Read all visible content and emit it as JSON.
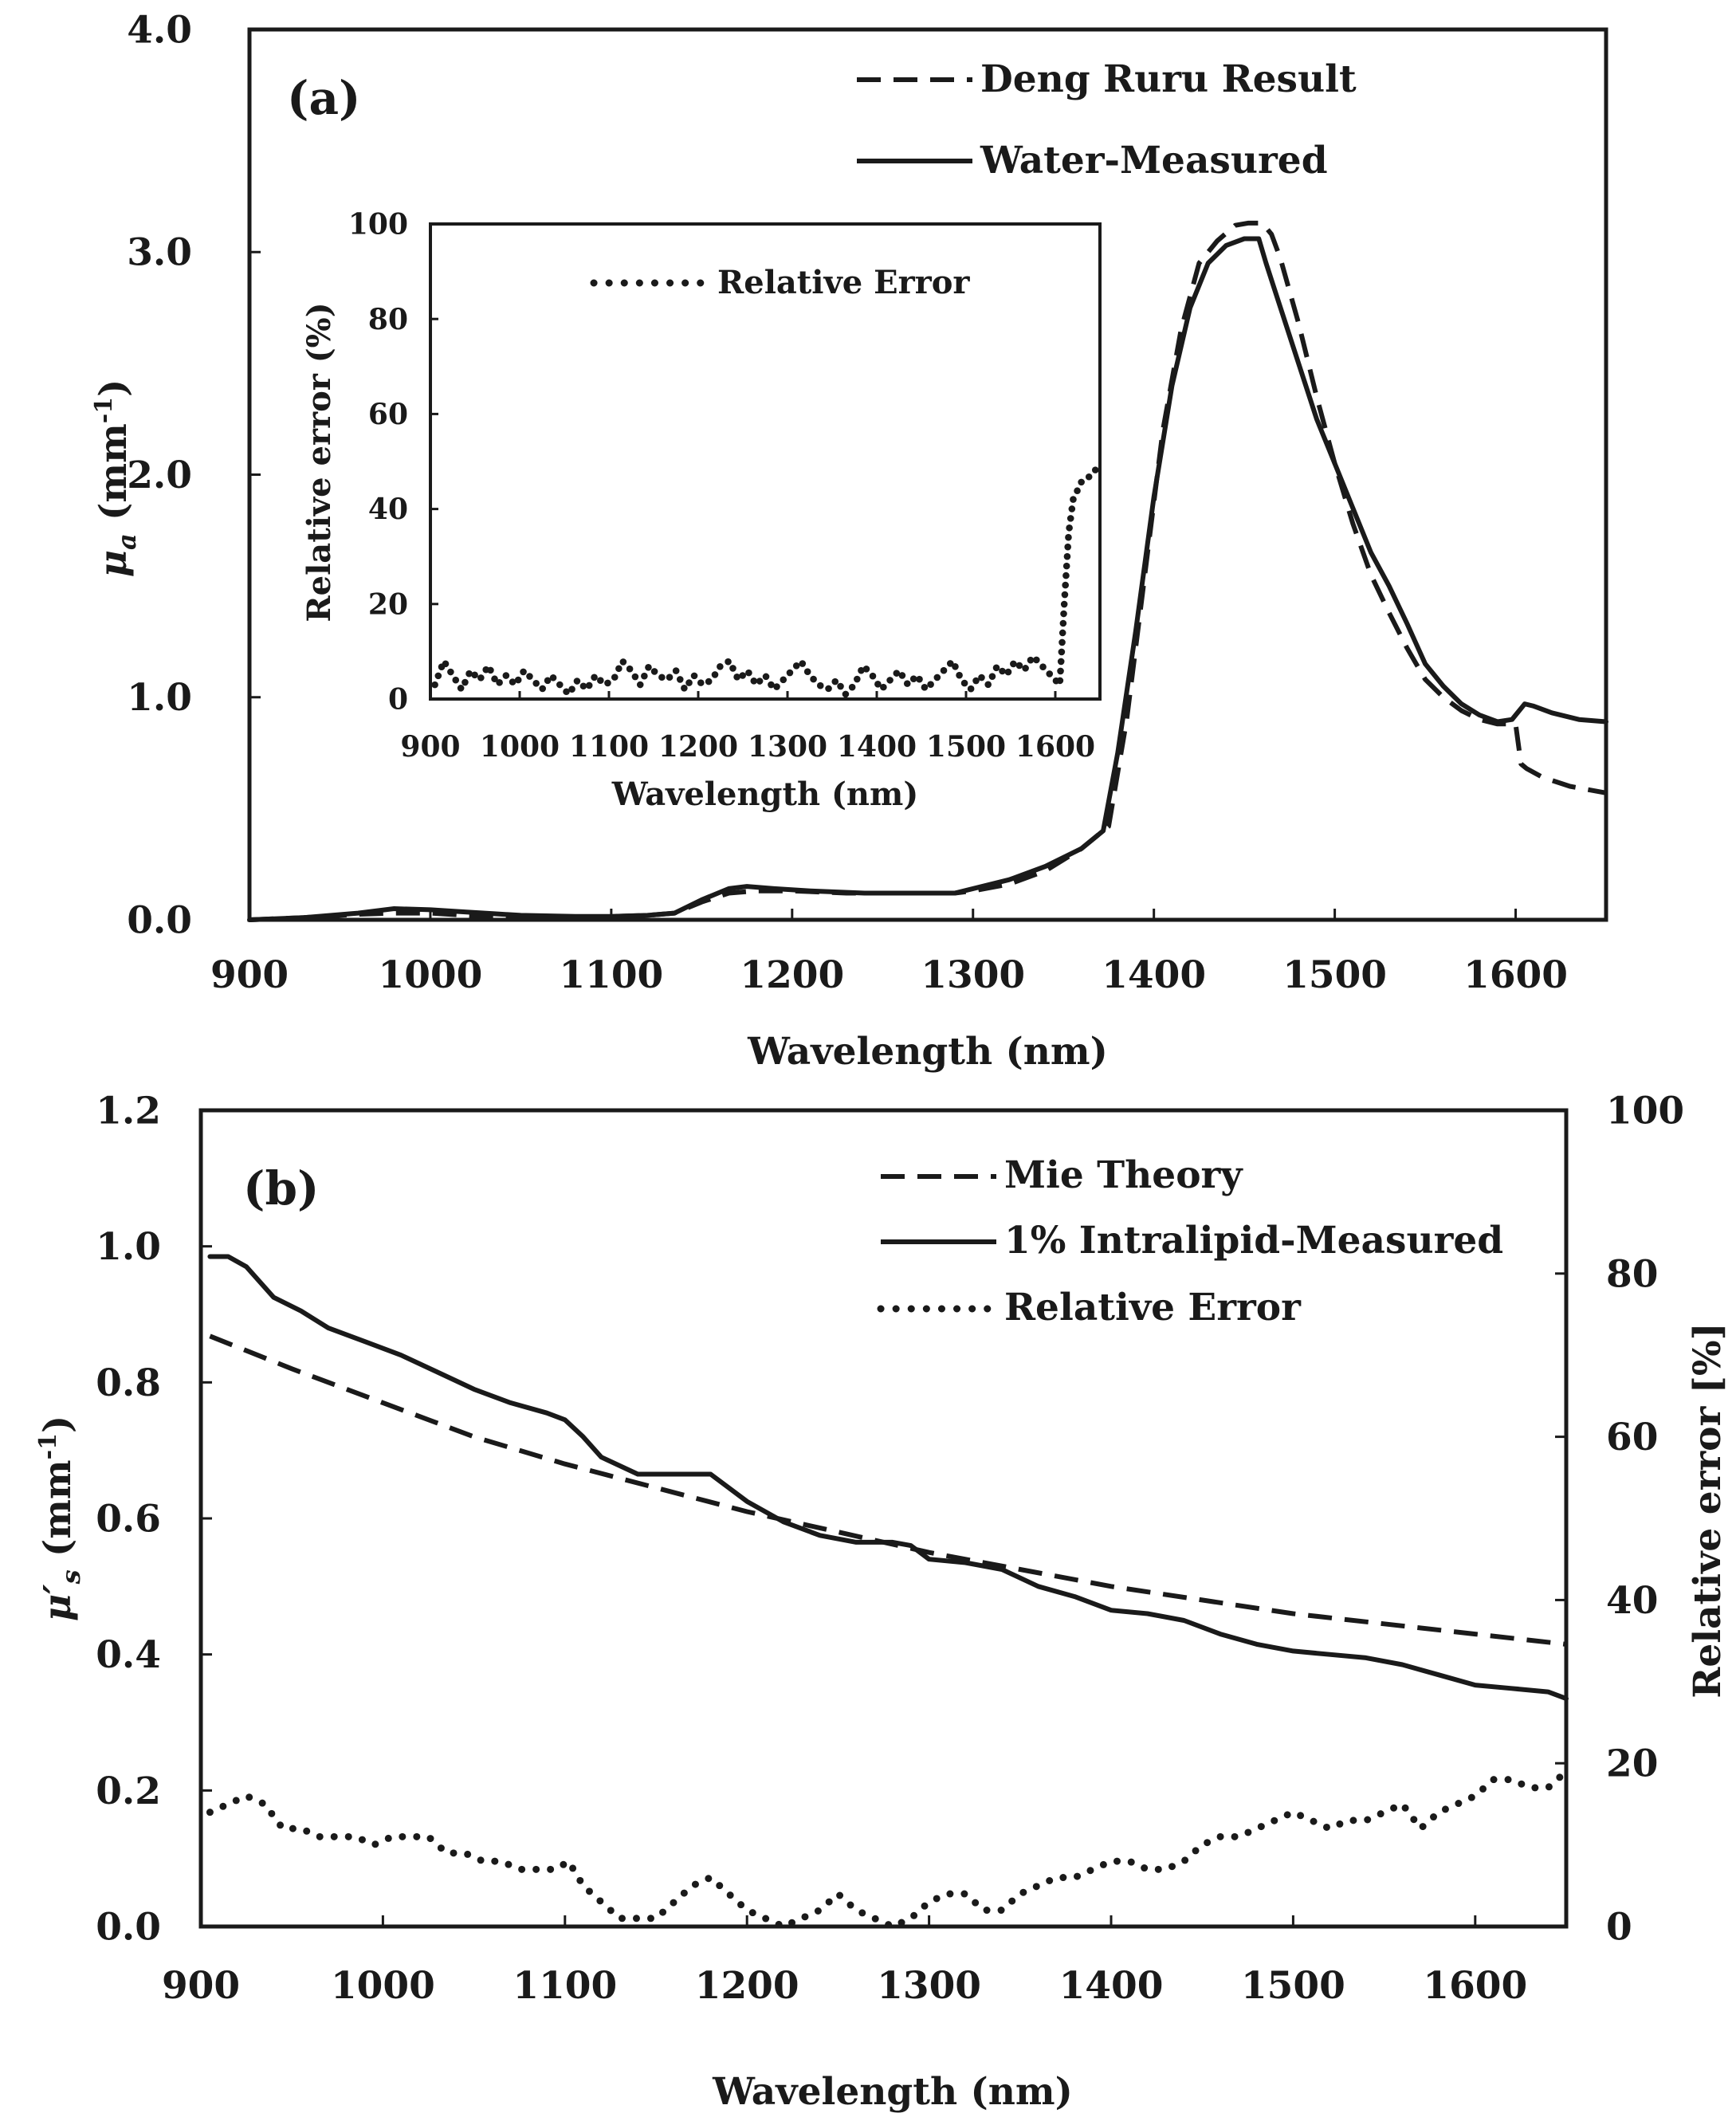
{
  "chart_data": [
    {
      "panel": "(a)",
      "type": "line",
      "xlabel": "Wavelength (nm)",
      "ylabel_main": "μ",
      "ylabel_sub": "a",
      "ylabel_unit": " (mm",
      "ylabel_exp": "-1",
      "ylabel_close": ")",
      "xlim": [
        900,
        1650
      ],
      "ylim": [
        0,
        4
      ],
      "xticks": [
        900,
        1000,
        1100,
        1200,
        1300,
        1400,
        1500,
        1600
      ],
      "yticks": [
        "0.0",
        "1.0",
        "2.0",
        "3.0",
        "4.0"
      ],
      "ytick_values": [
        0,
        1,
        2,
        3,
        4
      ],
      "series": [
        {
          "name": "Deng Ruru Result",
          "style": "dashed",
          "x": [
            900,
            930,
            960,
            980,
            1000,
            1020,
            1050,
            1080,
            1100,
            1120,
            1135,
            1150,
            1165,
            1180,
            1200,
            1230,
            1260,
            1290,
            1300,
            1320,
            1340,
            1360,
            1375,
            1385,
            1395,
            1405,
            1415,
            1425,
            1435,
            1445,
            1452,
            1460,
            1465,
            1470,
            1480,
            1490,
            1500,
            1510,
            1520,
            1530,
            1540,
            1550,
            1560,
            1570,
            1580,
            1590,
            1600,
            1603,
            1606,
            1615,
            1630,
            1650
          ],
          "values": [
            0.0,
            0.01,
            0.025,
            0.03,
            0.03,
            0.02,
            0.01,
            0.01,
            0.015,
            0.02,
            0.03,
            0.08,
            0.12,
            0.13,
            0.13,
            0.12,
            0.12,
            0.12,
            0.13,
            0.16,
            0.22,
            0.32,
            0.42,
            0.9,
            1.55,
            2.2,
            2.65,
            2.95,
            3.05,
            3.12,
            3.13,
            3.13,
            3.08,
            2.97,
            2.68,
            2.35,
            2.05,
            1.78,
            1.55,
            1.38,
            1.22,
            1.08,
            1.0,
            0.94,
            0.9,
            0.88,
            0.88,
            0.7,
            0.68,
            0.64,
            0.6,
            0.57
          ]
        },
        {
          "name": "Water-Measured",
          "style": "solid",
          "x": [
            900,
            930,
            960,
            980,
            1000,
            1020,
            1050,
            1080,
            1100,
            1120,
            1135,
            1150,
            1165,
            1175,
            1190,
            1210,
            1240,
            1260,
            1290,
            1300,
            1320,
            1340,
            1360,
            1372,
            1380,
            1390,
            1400,
            1410,
            1420,
            1430,
            1440,
            1450,
            1458,
            1462,
            1470,
            1480,
            1490,
            1500,
            1510,
            1520,
            1530,
            1540,
            1550,
            1560,
            1570,
            1580,
            1590,
            1598,
            1605,
            1610,
            1620,
            1635,
            1650
          ],
          "values": [
            0.0,
            0.01,
            0.03,
            0.05,
            0.045,
            0.035,
            0.02,
            0.015,
            0.015,
            0.02,
            0.03,
            0.09,
            0.14,
            0.15,
            0.14,
            0.13,
            0.12,
            0.12,
            0.12,
            0.14,
            0.18,
            0.24,
            0.32,
            0.4,
            0.75,
            1.3,
            1.9,
            2.4,
            2.75,
            2.95,
            3.03,
            3.06,
            3.06,
            2.95,
            2.75,
            2.5,
            2.25,
            2.05,
            1.85,
            1.65,
            1.5,
            1.33,
            1.15,
            1.05,
            0.97,
            0.92,
            0.89,
            0.9,
            0.97,
            0.96,
            0.93,
            0.9,
            0.89
          ]
        }
      ],
      "legend": [
        "Deng Ruru Result",
        "Water-Measured"
      ]
    },
    {
      "panel": "inset of (a)",
      "type": "scatter",
      "xlabel": "Wavelength (nm)",
      "ylabel": "Relative error (%)",
      "xlim": [
        900,
        1650
      ],
      "ylim": [
        0,
        100
      ],
      "xticks": [
        900,
        1000,
        1100,
        1200,
        1300,
        1400,
        1500,
        1600
      ],
      "yticks": [
        "0",
        "20",
        "40",
        "60",
        "80",
        "100"
      ],
      "ytick_values": [
        0,
        20,
        40,
        60,
        80,
        100
      ],
      "series": [
        {
          "name": "Relative Error",
          "style": "dotted",
          "x": [
            905,
            915,
            925,
            935,
            945,
            955,
            965,
            975,
            985,
            995,
            1005,
            1015,
            1025,
            1035,
            1045,
            1055,
            1065,
            1075,
            1085,
            1095,
            1105,
            1115,
            1125,
            1135,
            1145,
            1155,
            1165,
            1175,
            1185,
            1195,
            1205,
            1215,
            1225,
            1235,
            1245,
            1255,
            1265,
            1275,
            1285,
            1295,
            1305,
            1315,
            1325,
            1335,
            1345,
            1355,
            1365,
            1375,
            1385,
            1395,
            1405,
            1415,
            1425,
            1435,
            1445,
            1455,
            1465,
            1475,
            1485,
            1495,
            1505,
            1515,
            1525,
            1535,
            1545,
            1555,
            1565,
            1575,
            1585,
            1595,
            1605,
            1610,
            1615,
            1620,
            1625,
            1630,
            1640,
            1648
          ],
          "values": [
            3,
            8,
            5,
            2,
            6,
            4,
            7,
            3,
            5,
            3,
            6,
            4,
            2,
            5,
            3,
            1,
            4,
            2,
            5,
            3,
            4,
            8,
            6,
            3,
            7,
            5,
            4,
            6,
            2,
            5,
            3,
            4,
            7,
            8,
            4,
            6,
            3,
            5,
            2,
            4,
            6,
            8,
            5,
            3,
            2,
            4,
            1,
            3,
            7,
            5,
            2,
            4,
            6,
            3,
            5,
            2,
            4,
            6,
            8,
            4,
            2,
            5,
            3,
            7,
            5,
            8,
            6,
            9,
            7,
            5,
            3,
            20,
            35,
            42,
            44,
            46,
            47,
            49
          ]
        }
      ],
      "legend": [
        "Relative Error"
      ]
    },
    {
      "panel": "(b)",
      "type": "line",
      "xlabel": "Wavelength (nm)",
      "ylabel_main": "μ′",
      "ylabel_sub": "s",
      "ylabel_unit": " (mm",
      "ylabel_exp": "-1",
      "ylabel_close": ")",
      "y2label": "Relative error [%]",
      "xlim": [
        900,
        1650
      ],
      "ylim": [
        0,
        1.2
      ],
      "y2lim": [
        0,
        100
      ],
      "xticks": [
        900,
        1000,
        1100,
        1200,
        1300,
        1400,
        1500,
        1600
      ],
      "yticks": [
        "0.0",
        "0.2",
        "0.4",
        "0.6",
        "0.8",
        "1.0",
        "1.2"
      ],
      "ytick_values": [
        0,
        0.2,
        0.4,
        0.6,
        0.8,
        1.0,
        1.2
      ],
      "y2ticks": [
        "0",
        "20",
        "40",
        "60",
        "80",
        "100"
      ],
      "y2tick_values": [
        0,
        20,
        40,
        60,
        80,
        100
      ],
      "series": [
        {
          "name": "Mie Theory",
          "style": "dashed",
          "axis": "left",
          "x": [
            905,
            950,
            1000,
            1050,
            1100,
            1150,
            1200,
            1250,
            1300,
            1350,
            1400,
            1450,
            1500,
            1550,
            1600,
            1650
          ],
          "values": [
            0.868,
            0.82,
            0.77,
            0.72,
            0.68,
            0.645,
            0.61,
            0.58,
            0.55,
            0.525,
            0.5,
            0.48,
            0.46,
            0.445,
            0.43,
            0.415
          ]
        },
        {
          "name": "1% Intralipid-Measured",
          "style": "solid",
          "axis": "left",
          "x": [
            905,
            915,
            925,
            940,
            955,
            970,
            990,
            1010,
            1030,
            1050,
            1070,
            1090,
            1100,
            1110,
            1120,
            1140,
            1160,
            1180,
            1200,
            1220,
            1240,
            1260,
            1280,
            1290,
            1300,
            1320,
            1340,
            1360,
            1380,
            1400,
            1420,
            1440,
            1460,
            1480,
            1500,
            1520,
            1540,
            1560,
            1580,
            1600,
            1620,
            1640,
            1650
          ],
          "values": [
            0.985,
            0.985,
            0.97,
            0.925,
            0.905,
            0.88,
            0.86,
            0.84,
            0.815,
            0.79,
            0.77,
            0.755,
            0.745,
            0.72,
            0.69,
            0.665,
            0.665,
            0.665,
            0.625,
            0.595,
            0.575,
            0.565,
            0.565,
            0.56,
            0.54,
            0.535,
            0.525,
            0.5,
            0.485,
            0.465,
            0.46,
            0.45,
            0.43,
            0.415,
            0.405,
            0.4,
            0.395,
            0.385,
            0.37,
            0.355,
            0.35,
            0.345,
            0.335
          ]
        },
        {
          "name": "Relative Error",
          "style": "dotted",
          "axis": "right",
          "x": [
            905,
            915,
            925,
            935,
            945,
            955,
            965,
            975,
            985,
            995,
            1005,
            1015,
            1025,
            1035,
            1045,
            1055,
            1065,
            1075,
            1085,
            1095,
            1102,
            1110,
            1120,
            1130,
            1140,
            1150,
            1160,
            1170,
            1180,
            1190,
            1200,
            1210,
            1220,
            1230,
            1240,
            1250,
            1260,
            1270,
            1280,
            1290,
            1300,
            1310,
            1320,
            1330,
            1340,
            1350,
            1360,
            1370,
            1380,
            1390,
            1400,
            1410,
            1420,
            1430,
            1440,
            1450,
            1460,
            1470,
            1480,
            1490,
            1500,
            1510,
            1520,
            1530,
            1540,
            1550,
            1560,
            1570,
            1580,
            1590,
            1600,
            1610,
            1620,
            1630,
            1640,
            1650
          ],
          "values": [
            14,
            15,
            16,
            15,
            12,
            12,
            11,
            11,
            11,
            10,
            11,
            11,
            11,
            9,
            9,
            8,
            8,
            7,
            7,
            7,
            8,
            5,
            3,
            1,
            1,
            1,
            3,
            5,
            6,
            4,
            2,
            1,
            0,
            1,
            2,
            4,
            2,
            1,
            0,
            1,
            3,
            4,
            4,
            2,
            2,
            4,
            5,
            6,
            6,
            7,
            8,
            8,
            7,
            7,
            8,
            10,
            11,
            11,
            12,
            13,
            14,
            13,
            12,
            13,
            13,
            14,
            15,
            12,
            14,
            15,
            16,
            18,
            18,
            17,
            17,
            19
          ]
        }
      ],
      "legend": [
        "Mie Theory",
        "1% Intralipid-Measured",
        "Relative Error"
      ]
    }
  ]
}
